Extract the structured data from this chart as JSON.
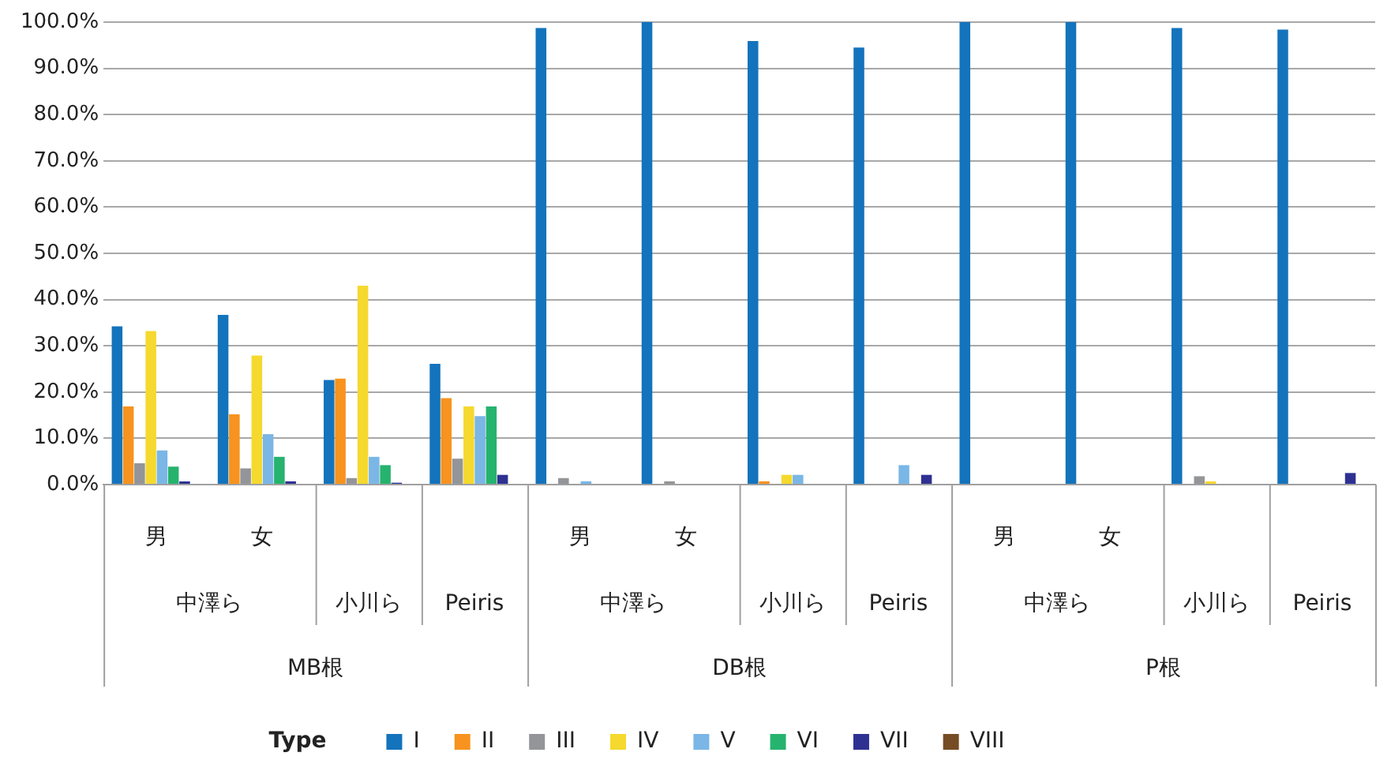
{
  "chart_data": {
    "type": "bar",
    "legend_title": "Type",
    "legend": "bottom",
    "grid": "y",
    "categories": [
      "男",
      "女",
      null,
      null,
      "男",
      "女",
      null,
      null,
      "男",
      "女",
      null,
      null
    ],
    "annotations": [
      "中澤ら",
      "小川ら",
      "Peiris",
      "中澤ら",
      "小川ら",
      "Peiris",
      "中澤ら",
      "小川ら",
      "Peiris",
      "MB根",
      "DB根",
      "P根"
    ],
    "ylim": [
      0,
      100
    ],
    "yticks": [
      {
        "value": 0,
        "label": "0.0%"
      },
      {
        "value": 10,
        "label": "10.0%"
      },
      {
        "value": 20,
        "label": "20.0%"
      },
      {
        "value": 30,
        "label": "30.0%"
      },
      {
        "value": 40,
        "label": "40.0%"
      },
      {
        "value": 50,
        "label": "50.0%"
      },
      {
        "value": 60,
        "label": "60.0%"
      },
      {
        "value": 70,
        "label": "70.0%"
      },
      {
        "value": 80,
        "label": "80.0%"
      },
      {
        "value": 90,
        "label": "90.0%"
      },
      {
        "value": 100,
        "label": "100.0%"
      }
    ],
    "series": [
      {
        "name": "I",
        "color": "#1373bc",
        "values": [
          34.2,
          36.7,
          22.6,
          26.1,
          98.7,
          100,
          95.9,
          94.5,
          100,
          100,
          98.7,
          98.4
        ]
      },
      {
        "name": "II",
        "color": "#f7931e",
        "values": [
          16.9,
          15.2,
          22.9,
          18.7,
          0,
          0,
          0.7,
          0,
          0,
          0,
          0,
          0
        ]
      },
      {
        "name": "III",
        "color": "#939598",
        "values": [
          4.6,
          3.5,
          1.4,
          5.6,
          1.4,
          0.7,
          null,
          0,
          0,
          0,
          1.8,
          0
        ]
      },
      {
        "name": "IV",
        "color": "#f5d92e",
        "values": [
          33.2,
          27.9,
          43.0,
          16.9,
          0,
          0,
          2.1,
          0,
          0,
          0,
          0.7,
          0
        ]
      },
      {
        "name": "V",
        "color": "#7ab6e6",
        "values": [
          7.4,
          10.9,
          6.0,
          14.8,
          0.7,
          0,
          2.1,
          4.2,
          0,
          0,
          0,
          0
        ]
      },
      {
        "name": "VI",
        "color": "#26b36e",
        "values": [
          3.9,
          6.0,
          4.2,
          16.9,
          0,
          0,
          0,
          0,
          0,
          0,
          0,
          0
        ]
      },
      {
        "name": "VII",
        "color": "#2e3192",
        "values": [
          0.7,
          0.7,
          0.4,
          2.1,
          0,
          0,
          0,
          2.1,
          0,
          0,
          0,
          2.5
        ]
      },
      {
        "name": "VIII",
        "color": "#754c24",
        "values": [
          0,
          0,
          0,
          0,
          0,
          0,
          0,
          0,
          0,
          0,
          0,
          0
        ]
      }
    ]
  }
}
